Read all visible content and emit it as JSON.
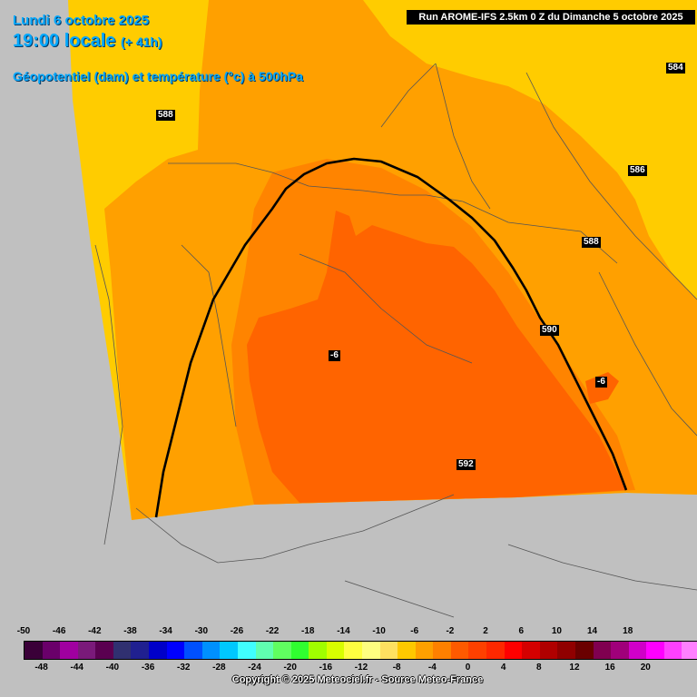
{
  "header": {
    "date": "Lundi 6 octobre 2025",
    "time": "19:00 locale",
    "lead": "(+ 41h)",
    "parameter": "Géopotentiel (dam) et température (°c) à 500hPa",
    "run": "Run AROME-IFS 2.5km 0 Z du Dimanche 5 octobre 2025"
  },
  "contour_labels": [
    "588",
    "584",
    "586",
    "588",
    "590",
    "592",
    "-6",
    "-6"
  ],
  "scale": {
    "colors": [
      "#3a0038",
      "#6a006a",
      "#a000a0",
      "#7a1a7a",
      "#5a0050",
      "#303070",
      "#202090",
      "#0000c8",
      "#0000ff",
      "#0050ff",
      "#0090ff",
      "#00c8ff",
      "#40ffff",
      "#60ffb0",
      "#60ff60",
      "#30ff30",
      "#a0ff00",
      "#d8ff00",
      "#ffff40",
      "#ffff80",
      "#ffe060",
      "#ffc800",
      "#ffa000",
      "#ff8000",
      "#ff5a00",
      "#ff4000",
      "#ff2800",
      "#ff0000",
      "#d40000",
      "#b00000",
      "#900000",
      "#6a0000",
      "#800050",
      "#a0007a",
      "#d000c8",
      "#ff00ff",
      "#ff40ff",
      "#ff80ff"
    ],
    "top_labels": [
      "-50",
      "-46",
      "-42",
      "-38",
      "-34",
      "-30",
      "-26",
      "-22",
      "-18",
      "-14",
      "-10",
      "-6",
      "-2",
      "2",
      "6",
      "10",
      "14",
      "18"
    ],
    "bottom_labels": [
      "-48",
      "-44",
      "-40",
      "-36",
      "-32",
      "-28",
      "-24",
      "-20",
      "-16",
      "-12",
      "-8",
      "-4",
      "0",
      "4",
      "8",
      "12",
      "16",
      "20"
    ]
  },
  "copyright": "Copyright © 2025 Meteociel.fr - Source Meteo-France"
}
